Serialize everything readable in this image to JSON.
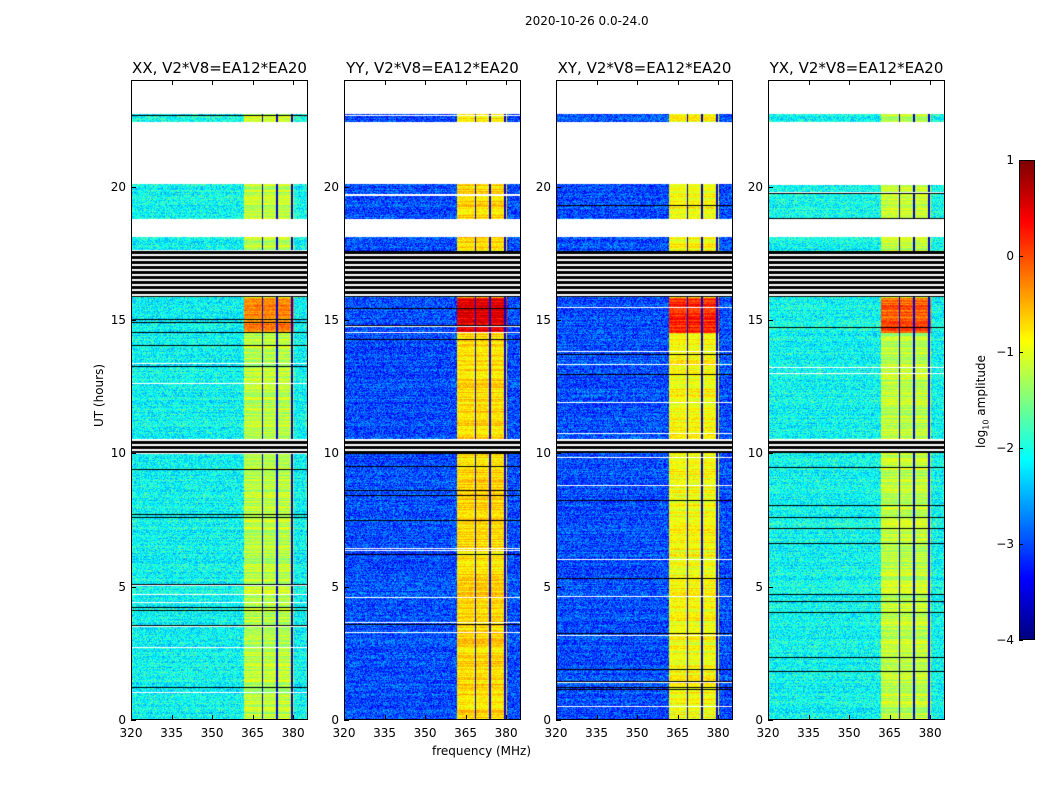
{
  "chart_data": {
    "type": "heatmap",
    "suptitle": "2020-10-26 0.0-24.0",
    "xlabel": "frequency (MHz)",
    "ylabel": "UT (hours)",
    "xlim": [
      320,
      385.5
    ],
    "ylim": [
      0,
      24
    ],
    "xticks": [
      "320",
      "335",
      "350",
      "365",
      "380"
    ],
    "xtick_values": [
      320,
      335,
      350,
      365,
      380
    ],
    "yticks": [
      "0",
      "5",
      "10",
      "15",
      "20"
    ],
    "ytick_values": [
      0,
      5,
      10,
      15,
      20
    ],
    "colorbar": {
      "label_main": "log",
      "label_sub": "10",
      "label_rest": " amplitude",
      "range": [
        -4,
        1
      ],
      "ticks": [
        "1",
        "0",
        "−1",
        "−2",
        "−3",
        "−4"
      ],
      "tick_values": [
        1,
        0,
        -1,
        -2,
        -3,
        -4
      ],
      "colormap": "jet"
    },
    "band_edges_mhz": [
      362,
      369,
      374.5,
      380,
      381
    ],
    "flagged_hours": [
      [
        18.1,
        18.8
      ],
      [
        20.1,
        22.45
      ],
      [
        22.75,
        24
      ]
    ],
    "black_hours": [
      [
        15.85,
        17.6
      ],
      [
        10.0,
        10.5
      ]
    ],
    "panels": [
      {
        "title": "XX, V2*V8=EA12*EA20",
        "low_level": -2.1,
        "band_level": -1.2,
        "peak_level": -0.2,
        "peak_hours": [
          14.5,
          15.8
        ]
      },
      {
        "title": "YY, V2*V8=EA12*EA20",
        "low_level": -3.0,
        "band_level": -0.7,
        "peak_level": 0.5,
        "peak_hours": [
          14.5,
          15.8
        ]
      },
      {
        "title": "XY, V2*V8=EA12*EA20",
        "low_level": -3.0,
        "band_level": -0.9,
        "peak_level": 0.2,
        "peak_hours": [
          14.5,
          15.8
        ]
      },
      {
        "title": "YX, V2*V8=EA12*EA20",
        "low_level": -2.1,
        "band_level": -1.2,
        "peak_level": -0.1,
        "peak_hours": [
          14.5,
          15.8
        ]
      }
    ]
  }
}
